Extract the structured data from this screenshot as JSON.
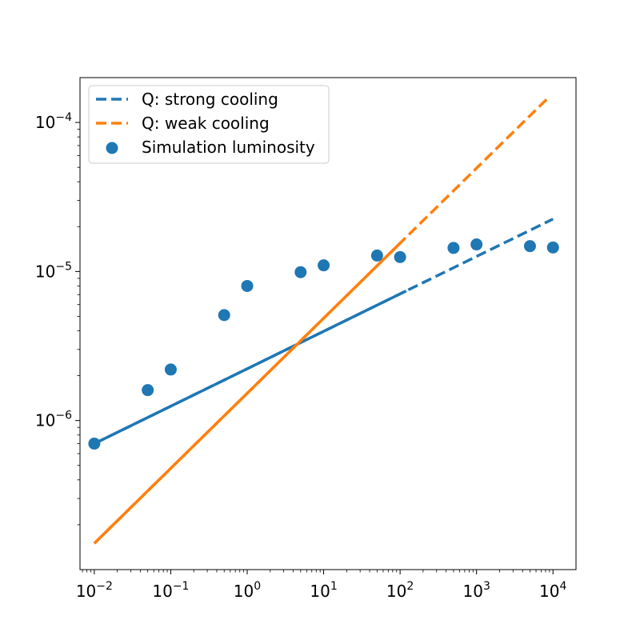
{
  "chart_data": {
    "type": "scatter",
    "title": "",
    "xlabel": "",
    "ylabel": "",
    "xscale": "log",
    "yscale": "log",
    "xlim": [
      0.0065,
      20000
    ],
    "ylim": [
      1e-07,
      0.0002
    ],
    "x_ticks": [
      {
        "value": 0.01,
        "base": "10",
        "exp": "−2"
      },
      {
        "value": 0.1,
        "base": "10",
        "exp": "−1"
      },
      {
        "value": 1,
        "base": "10",
        "exp": "0"
      },
      {
        "value": 10,
        "base": "10",
        "exp": "1"
      },
      {
        "value": 100,
        "base": "10",
        "exp": "2"
      },
      {
        "value": 1000,
        "base": "10",
        "exp": "3"
      },
      {
        "value": 10000,
        "base": "10",
        "exp": "4"
      }
    ],
    "y_ticks": [
      {
        "value": 1e-06,
        "base": "10",
        "exp": "−6"
      },
      {
        "value": 1e-05,
        "base": "10",
        "exp": "−5"
      },
      {
        "value": 0.0001,
        "base": "10",
        "exp": "−4"
      }
    ],
    "grid": false,
    "legend_position": "top-left",
    "series": [
      {
        "name": "Q: strong cooling",
        "kind": "line",
        "style": "dashed",
        "solid_until_x": 120,
        "color": "#1f77b4",
        "points": [
          [
            0.01,
            7e-07
          ],
          [
            10000,
            2.25e-05
          ]
        ]
      },
      {
        "name": "Q: weak cooling",
        "kind": "line",
        "style": "dashed",
        "solid_until_x": 100,
        "color": "#ff7f0e",
        "points": [
          [
            0.01,
            1.5e-07
          ],
          [
            8500,
            0.000145
          ]
        ]
      },
      {
        "name": "Simulation luminosity",
        "kind": "scatter",
        "color": "#1f77b4",
        "points": [
          [
            0.01,
            7e-07
          ],
          [
            0.05,
            1.6e-06
          ],
          [
            0.1,
            2.2e-06
          ],
          [
            0.5,
            5.1e-06
          ],
          [
            1,
            8e-06
          ],
          [
            5,
            9.9e-06
          ],
          [
            10,
            1.1e-05
          ],
          [
            50,
            1.28e-05
          ],
          [
            100,
            1.25e-05
          ],
          [
            500,
            1.44e-05
          ],
          [
            1000,
            1.52e-05
          ],
          [
            5000,
            1.48e-05
          ],
          [
            10000,
            1.45e-05
          ]
        ]
      }
    ]
  }
}
